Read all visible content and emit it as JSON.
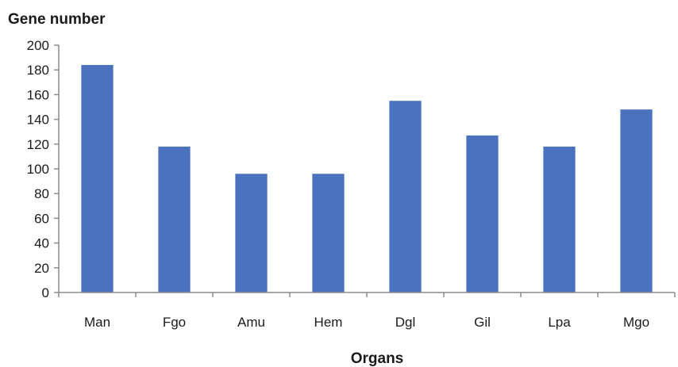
{
  "chart_data": {
    "type": "bar",
    "title": "",
    "ylabel": "Gene number",
    "xlabel": "Organs",
    "categories": [
      "Man",
      "Fgo",
      "Amu",
      "Hem",
      "Dgl",
      "Gil",
      "Lpa",
      "Mgo"
    ],
    "values": [
      184,
      118,
      96,
      96,
      155,
      127,
      118,
      148
    ],
    "ylim": [
      0,
      200
    ],
    "yticks": [
      0,
      20,
      40,
      60,
      80,
      100,
      120,
      140,
      160,
      180,
      200
    ],
    "ytick_labels": [
      "0",
      "20",
      "40",
      "60",
      "80",
      "100",
      "120",
      "140",
      "160",
      "180",
      "200"
    ],
    "grid": false,
    "legend": "none",
    "bar_color": "#4a72bf",
    "axis_color": "#8c8c8c"
  }
}
